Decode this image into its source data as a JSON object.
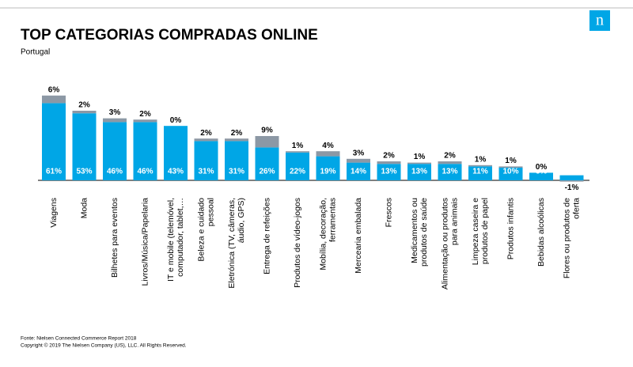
{
  "chart_data": {
    "type": "stacked_bar",
    "title": "TOP CATEGORIAS COMPRADAS ONLINE",
    "subtitle": "Portugal",
    "logo": "n",
    "source": "Fonte: Nielsen Connected Commerce Report 2018",
    "copyright": "Copyright © 2019 The Nielsen Company (US), LLC. All Rights Reserved.",
    "categories": [
      "Viagens",
      "Moda",
      "Bilhetes para eventos",
      "Livros/Música/Papelaria",
      "IT e mobile (telemóvel,\ncomputador, tablet,…",
      "Beleza e cuidado\npessoal",
      "Eletrónica (TV, câmeras,\náudio, GPS)",
      "Entrega de refeições",
      "Produtos de vídeo-jogos",
      "Mobília, decoração,\nferramentas",
      "Mercearia embalada",
      "Frescos",
      "Medicamentos ou\nprodutos de saúde",
      "Alimentação ou produtos\npara animais",
      "Limpeza caseira e\nprodutos de papel",
      "Produtos infantis",
      "Bebidas alcoólicas",
      "Flores ou produtos de\noferta"
    ],
    "series": [
      {
        "color": "#00a6e6",
        "values": [
          61,
          53,
          46,
          46,
          43,
          31,
          31,
          26,
          22,
          19,
          14,
          13,
          13,
          13,
          11,
          10,
          6,
          4
        ],
        "value_labels": [
          "61%",
          "53%",
          "46%",
          "46%",
          "43%",
          "31%",
          "31%",
          "26%",
          "22%",
          "19%",
          "14%",
          "13%",
          "13%",
          "13%",
          "11%",
          "10%",
          "6%",
          "4%"
        ]
      },
      {
        "color": "#8c98a5",
        "values": [
          6,
          2,
          3,
          2,
          0,
          2,
          2,
          9,
          1,
          4,
          3,
          2,
          1,
          2,
          1,
          1,
          0,
          -1
        ],
        "value_labels": [
          "6%",
          "2%",
          "3%",
          "2%",
          "0%",
          "2%",
          "2%",
          "9%",
          "1%",
          "4%",
          "3%",
          "2%",
          "1%",
          "2%",
          "1%",
          "1%",
          "0%",
          "-1%"
        ]
      }
    ]
  }
}
